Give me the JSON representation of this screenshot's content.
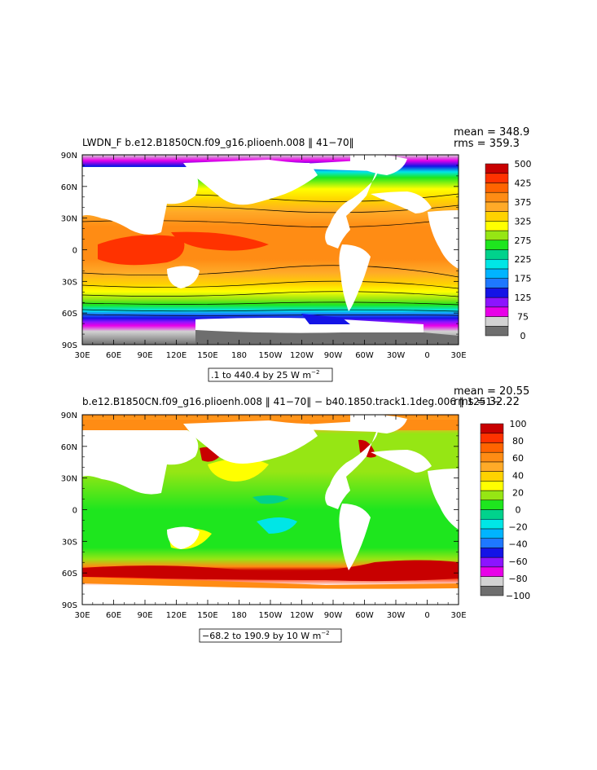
{
  "panel1": {
    "title": "LWDN_F  b.e12.B1850CN.f09_g16.plioenh.008  ‖ 41−70‖",
    "mean": "mean = 348.9",
    "rms": "rms = 359.3",
    "range_text": ".1 to 440.4 by 25  W m",
    "range_unit_exp": "−2",
    "colorbar": {
      "colors": [
        "#6e6e6e",
        "#d2d2d2",
        "#e800e8",
        "#8c14ff",
        "#1414e6",
        "#1e78ff",
        "#00b4ff",
        "#00e6e6",
        "#00d28c",
        "#1ee61e",
        "#96e614",
        "#ffff00",
        "#ffd200",
        "#ffaa28",
        "#ff8c14",
        "#ff6400",
        "#ff3200",
        "#c80000"
      ],
      "labels": [
        "0",
        "75",
        "125",
        "175",
        "225",
        "275",
        "325",
        "375",
        "425",
        "500"
      ]
    }
  },
  "panel2": {
    "title": "b.e12.B1850CN.f09_g16.plioenh.008  ‖ 41−70‖  −  b40.1850.track1.1deg.006  ‖ 1251−",
    "mean": "mean = 20.55",
    "rms": "rms = 32.22",
    "range_text": "−68.2 to 190.9 by 10  W m",
    "range_unit_exp": "−2",
    "colorbar": {
      "colors": [
        "#6e6e6e",
        "#d2d2d2",
        "#e800e8",
        "#8c14ff",
        "#1414e6",
        "#1e78ff",
        "#00b4ff",
        "#00e6e6",
        "#00d28c",
        "#1ee61e",
        "#96e614",
        "#ffff00",
        "#ffd200",
        "#ffaa28",
        "#ff8c14",
        "#ff6400",
        "#ff3200",
        "#c80000"
      ],
      "labels": [
        "−100",
        "−80",
        "−60",
        "−40",
        "−20",
        "0",
        "20",
        "40",
        "60",
        "80",
        "100"
      ]
    }
  },
  "axes": {
    "lon_ticks": [
      "30E",
      "60E",
      "90E",
      "120E",
      "150E",
      "180",
      "150W",
      "120W",
      "90W",
      "60W",
      "30W",
      "0",
      "30E"
    ],
    "lat_ticks": [
      "90N",
      "60N",
      "30N",
      "0",
      "30S",
      "60S",
      "90S"
    ]
  },
  "colors": {
    "land": "#ffffff",
    "frame": "#000000"
  }
}
